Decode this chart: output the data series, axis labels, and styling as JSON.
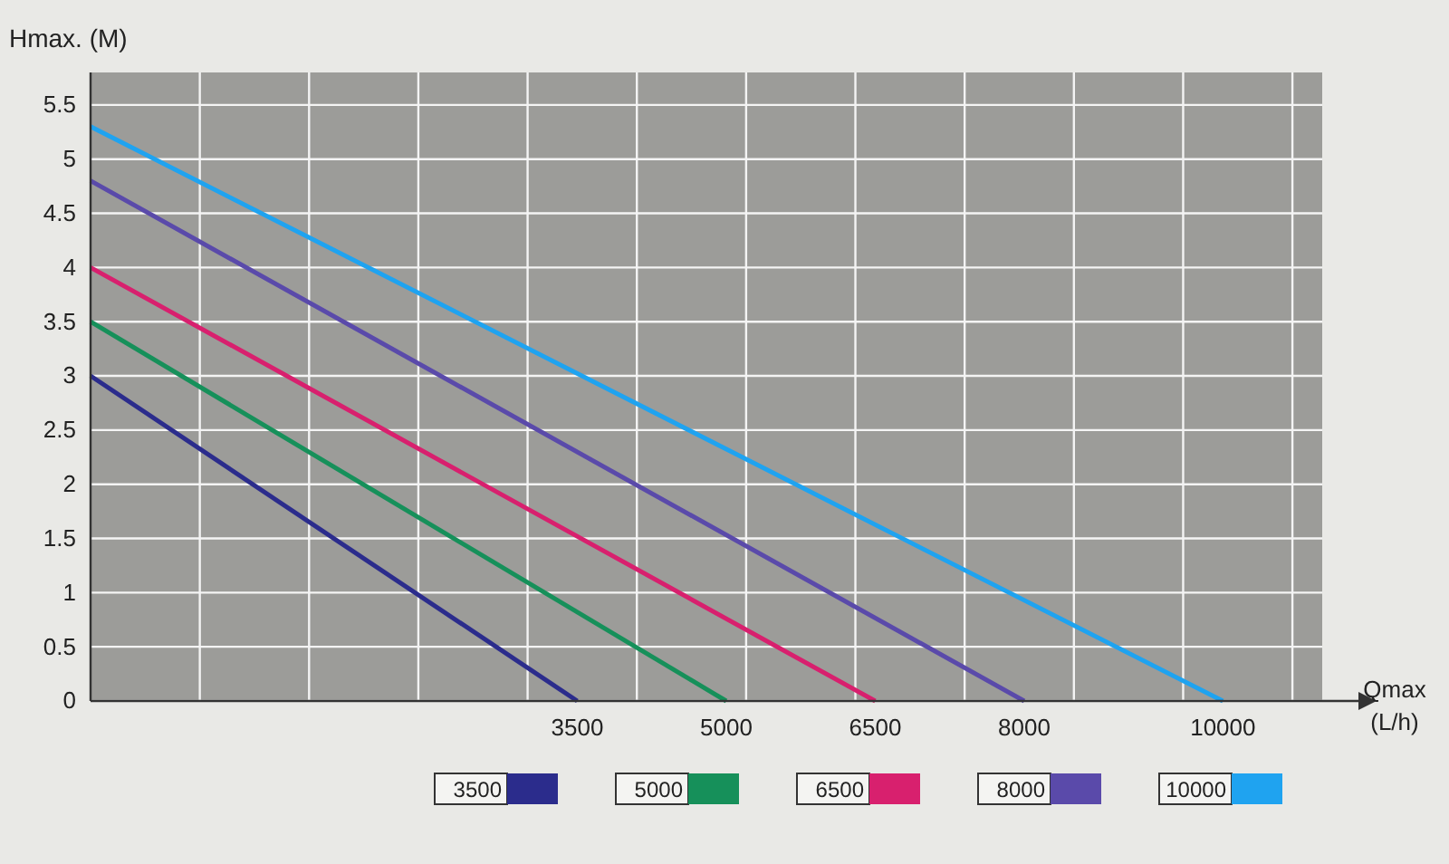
{
  "chart_data": {
    "type": "line",
    "ylabel": "Hmax. (M)",
    "xlabel": "Qmax (L/h)",
    "xlim": [
      -1400,
      11000
    ],
    "ylim": [
      0,
      5.8
    ],
    "xticks": [
      {
        "value": -300,
        "label": null
      },
      {
        "value": 800,
        "label": null
      },
      {
        "value": 1900,
        "label": null
      },
      {
        "value": 3000,
        "label": null
      },
      3500,
      {
        "value": 4100,
        "label": null
      },
      5000,
      {
        "value": 5200,
        "label": null
      },
      6500,
      {
        "value": 6300,
        "label": null
      },
      {
        "value": 7400,
        "label": null
      },
      8000,
      {
        "value": 8500,
        "label": null
      },
      {
        "value": 9600,
        "label": null
      },
      10000,
      {
        "value": 10700,
        "label": null
      }
    ],
    "yticks": [
      0,
      1.0,
      1.5,
      2.0,
      2.5,
      3.0,
      3.5,
      4.0,
      4.5,
      5.0,
      5.5,
      {
        "value": 0.5,
        "label": "0.5"
      }
    ],
    "grid": true,
    "legend": "bottom",
    "marker": "none",
    "line_style": "solid",
    "series": [
      {
        "name": "3500",
        "color": "#2b2c8c",
        "x": [
          -1400,
          3500
        ],
        "values": [
          3.0,
          0
        ]
      },
      {
        "name": "5000",
        "color": "#16905a",
        "x": [
          -1400,
          5000
        ],
        "values": [
          3.5,
          0
        ]
      },
      {
        "name": "6500",
        "color": "#d8206e",
        "x": [
          -1400,
          6500
        ],
        "values": [
          4.0,
          0
        ]
      },
      {
        "name": "8000",
        "color": "#5a4aaa",
        "x": [
          -1400,
          8000
        ],
        "values": [
          4.8,
          0
        ]
      },
      {
        "name": "10000",
        "color": "#1fa3f0",
        "x": [
          -1400,
          10000
        ],
        "values": [
          5.3,
          0
        ]
      }
    ]
  }
}
